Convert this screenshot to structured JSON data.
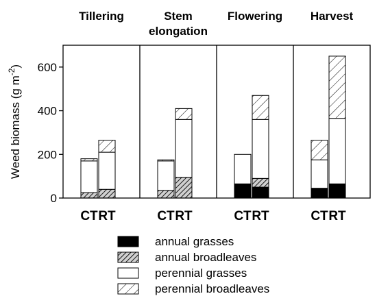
{
  "chart_data": {
    "type": "bar",
    "stacked": true,
    "ylabel_main": "Weed biomass (g m",
    "ylabel_sup": "-2",
    "ylabel_close": ")",
    "ylim": [
      0,
      700
    ],
    "yticks": [
      0,
      200,
      400,
      600
    ],
    "panels": [
      "Tillering",
      "Stem elongation",
      "Flowering",
      "Harvest"
    ],
    "panel_title_lines": [
      [
        "Tillering"
      ],
      [
        "Stem",
        "elongation"
      ],
      [
        "Flowering"
      ],
      [
        "Harvest"
      ]
    ],
    "conditions": [
      "CT",
      "RT"
    ],
    "series": [
      {
        "name": "annual grasses",
        "fill": "solid",
        "color": "#000000",
        "values": [
          [
            0,
            0
          ],
          [
            0,
            0
          ],
          [
            65,
            50
          ],
          [
            45,
            65
          ]
        ]
      },
      {
        "name": "annual broadleaves",
        "fill": "hatch-dense",
        "values": [
          [
            25,
            40
          ],
          [
            35,
            95
          ],
          [
            0,
            40
          ],
          [
            0,
            0
          ]
        ]
      },
      {
        "name": "perennial grasses",
        "fill": "white",
        "values": [
          [
            145,
            170
          ],
          [
            135,
            265
          ],
          [
            135,
            270
          ],
          [
            130,
            300
          ]
        ]
      },
      {
        "name": "perennial broadleaves",
        "fill": "hatch-sparse",
        "values": [
          [
            10,
            55
          ],
          [
            5,
            50
          ],
          [
            0,
            110
          ],
          [
            90,
            285
          ]
        ]
      }
    ],
    "grid": false,
    "legend_position": "bottom"
  }
}
